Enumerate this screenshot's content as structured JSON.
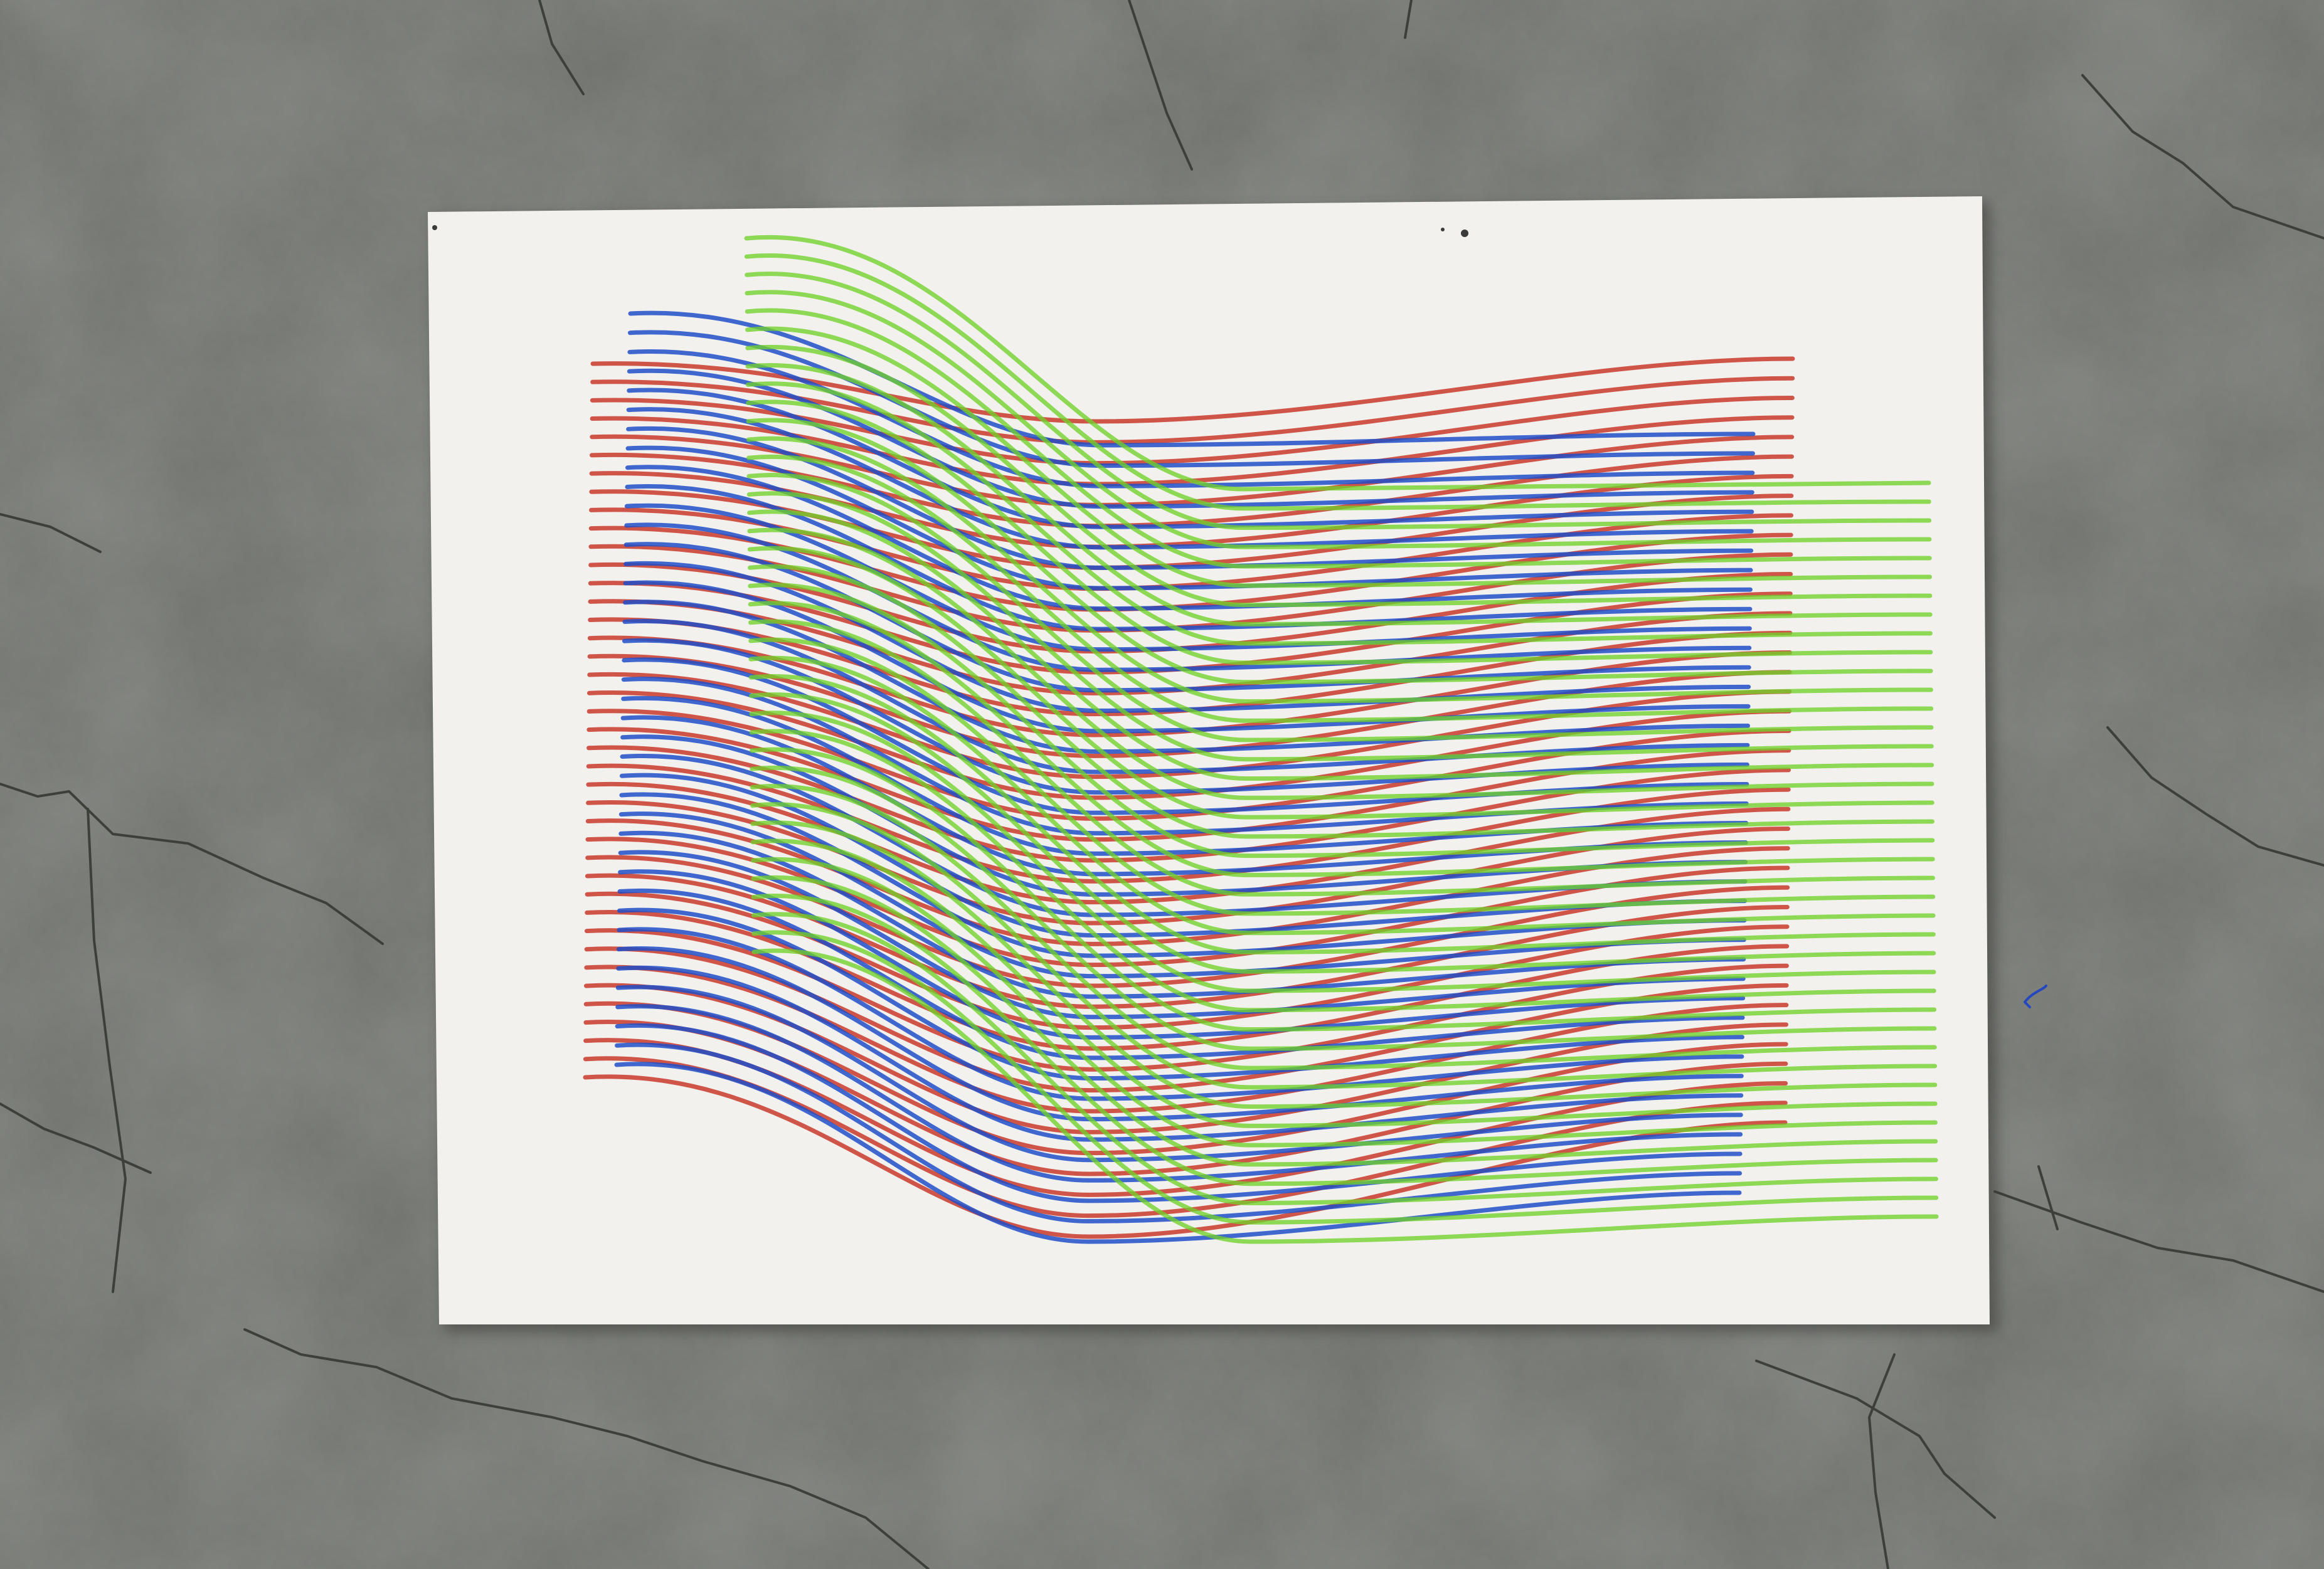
{
  "scene": {
    "subject": "pen-plotter-artwork",
    "background": {
      "surface": "concrete-floor",
      "color": "#6f716c",
      "crack_color": "#3d3f3b"
    },
    "paper": {
      "color": "#f3f1ee",
      "shadow_color": "#3a3b38"
    },
    "layers": [
      {
        "name": "red",
        "color": "#c8392c",
        "line_count": 40
      },
      {
        "name": "blue",
        "color": "#1f4fc8",
        "line_count": 40
      },
      {
        "name": "green",
        "color": "#6fd12a",
        "line_count": 40
      }
    ],
    "marks": [
      {
        "name": "small-ink-dot",
        "color": "#3b3b3b"
      },
      {
        "name": "blue-ink-scribble",
        "color": "#2447c0"
      }
    ]
  }
}
